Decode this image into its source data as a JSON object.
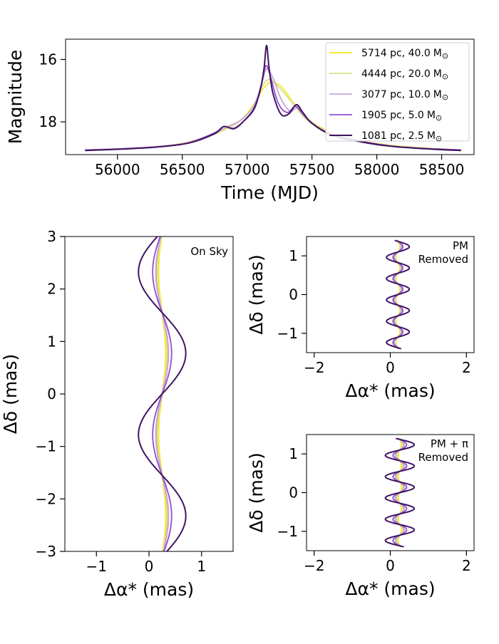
{
  "chart_data": [
    {
      "id": "lightcurve",
      "type": "line",
      "xlabel": "Time (MJD)",
      "ylabel": "Magnitude",
      "xlim": [
        55600,
        58750
      ],
      "ylim": [
        19.05,
        15.35
      ],
      "xticks": [
        56000,
        56500,
        57000,
        57500,
        58000,
        58500
      ],
      "yticks": [
        16,
        18
      ],
      "legend_position": "top-right",
      "series": [
        {
          "name": "5714 pc, 40.0",
          "unit": "M",
          "sub": "⊙",
          "color": "#f5ea3a",
          "width": 2.0,
          "x": [
            55750,
            56000,
            56300,
            56550,
            56800,
            56950,
            57050,
            57120,
            57180,
            57220,
            57280,
            57350,
            57450,
            57600,
            57800,
            58100,
            58400,
            58650
          ],
          "y": [
            18.9,
            18.87,
            18.8,
            18.65,
            18.3,
            17.95,
            17.45,
            16.95,
            16.72,
            16.75,
            16.95,
            17.35,
            17.85,
            18.25,
            18.55,
            18.75,
            18.85,
            18.9
          ]
        },
        {
          "name": "4444 pc, 20.0",
          "unit": "M",
          "sub": "⊙",
          "color": "#d9df8c",
          "width": 1.8,
          "x": [
            55750,
            56000,
            56300,
            56550,
            56800,
            56950,
            57050,
            57110,
            57160,
            57210,
            57280,
            57350,
            57450,
            57600,
            57800,
            58100,
            58400,
            58650
          ],
          "y": [
            18.9,
            18.87,
            18.8,
            18.66,
            18.3,
            17.95,
            17.5,
            16.9,
            16.65,
            16.75,
            17.05,
            17.4,
            17.9,
            18.28,
            18.56,
            18.76,
            18.86,
            18.9
          ]
        },
        {
          "name": "3077 pc, 10.0",
          "unit": "M",
          "sub": "⊙",
          "color": "#c7a6d8",
          "width": 1.8,
          "x": [
            55750,
            56000,
            56300,
            56550,
            56750,
            56850,
            56950,
            57050,
            57110,
            57150,
            57200,
            57260,
            57330,
            57390,
            57450,
            57600,
            57800,
            58100,
            58400,
            58650
          ],
          "y": [
            18.9,
            18.87,
            18.8,
            18.66,
            18.35,
            18.15,
            17.95,
            17.5,
            16.8,
            16.3,
            16.6,
            17.25,
            17.65,
            17.55,
            17.85,
            18.3,
            18.57,
            18.77,
            18.86,
            18.9
          ]
        },
        {
          "name": "1905 pc, 5.0",
          "unit": "M",
          "sub": "⊙",
          "color": "#8f4fd0",
          "width": 1.8,
          "x": [
            55750,
            56000,
            56300,
            56550,
            56750,
            56820,
            56900,
            56980,
            57060,
            57110,
            57145,
            57180,
            57240,
            57310,
            57370,
            57420,
            57500,
            57650,
            57850,
            58100,
            58400,
            58650
          ],
          "y": [
            18.9,
            18.87,
            18.8,
            18.67,
            18.35,
            18.15,
            18.2,
            17.95,
            17.55,
            16.8,
            16.2,
            16.55,
            17.4,
            17.7,
            17.5,
            17.7,
            18.05,
            18.4,
            18.6,
            18.77,
            18.86,
            18.9
          ]
        },
        {
          "name": "1081 pc, 2.5",
          "unit": "M",
          "sub": "⊙",
          "color": "#3f1560",
          "width": 2.0,
          "x": [
            55750,
            56000,
            56300,
            56550,
            56750,
            56820,
            56900,
            56980,
            57050,
            57100,
            57130,
            57150,
            57170,
            57200,
            57260,
            57320,
            57380,
            57430,
            57500,
            57650,
            57850,
            58100,
            58400,
            58650
          ],
          "y": [
            18.92,
            18.88,
            18.81,
            18.68,
            18.38,
            18.15,
            18.22,
            17.95,
            17.6,
            17.0,
            16.3,
            15.55,
            16.3,
            17.1,
            17.75,
            17.75,
            17.45,
            17.7,
            18.05,
            18.42,
            18.62,
            18.78,
            18.87,
            18.92
          ]
        }
      ]
    },
    {
      "id": "onsky",
      "type": "line",
      "title": "On Sky",
      "xlabel": "Δα* (mas)",
      "ylabel": "Δδ (mas)",
      "xlim": [
        -1.6,
        1.6
      ],
      "ylim": [
        -3,
        3
      ],
      "xticks": [
        -1,
        0,
        1
      ],
      "yticks": [
        -3,
        -2,
        -1,
        0,
        1,
        2,
        3
      ],
      "series": [
        {
          "name": "5714 pc, 40.0",
          "color": "#f5ea3a",
          "width": 2.5,
          "center": 0.25,
          "amplitude": 0.07,
          "period": 3.1,
          "phase": 0.0
        },
        {
          "name": "4444 pc, 20.0",
          "color": "#d9df8c",
          "width": 2.0,
          "center": 0.25,
          "amplitude": 0.1,
          "period": 3.1,
          "phase": 0.0
        },
        {
          "name": "3077 pc, 10.0",
          "color": "#c7a6d8",
          "width": 2.0,
          "center": 0.25,
          "amplitude": 0.12,
          "period": 3.1,
          "phase": 0.0
        },
        {
          "name": "1905 pc, 5.0",
          "color": "#8f4fd0",
          "width": 1.8,
          "center": 0.25,
          "amplitude": 0.18,
          "period": 3.1,
          "phase": 0.0
        },
        {
          "name": "1081 pc, 2.5",
          "color": "#3f1560",
          "width": 2.0,
          "center": 0.25,
          "amplitude": 0.45,
          "period": 3.1,
          "phase": 0.0
        }
      ]
    },
    {
      "id": "pm_removed",
      "type": "line",
      "title_lines": [
        "PM",
        "Removed"
      ],
      "xlabel": "Δα* (mas)",
      "ylabel": "Δδ (mas)",
      "xlim": [
        -2.2,
        2.2
      ],
      "ylim": [
        -1.5,
        1.5
      ],
      "xticks": [
        -2,
        0,
        2
      ],
      "yticks": [
        -1,
        0,
        1
      ],
      "y_range": [
        -1.4,
        1.4
      ],
      "series": [
        {
          "name": "5714 pc, 40.0",
          "color": "#f5ea3a",
          "width": 2.5,
          "center": 0.2,
          "amplitude": 0.06,
          "period": 0.55,
          "phase": 0.0
        },
        {
          "name": "4444 pc, 20.0",
          "color": "#d9df8c",
          "width": 2.0,
          "center": 0.2,
          "amplitude": 0.08,
          "period": 0.55,
          "phase": 0.0
        },
        {
          "name": "3077 pc, 10.0",
          "color": "#c7a6d8",
          "width": 2.0,
          "center": 0.2,
          "amplitude": 0.1,
          "period": 0.55,
          "phase": 0.0
        },
        {
          "name": "1905 pc, 5.0",
          "color": "#8f4fd0",
          "width": 1.8,
          "center": 0.2,
          "amplitude": 0.13,
          "period": 0.55,
          "phase": 0.0
        },
        {
          "name": "1081 pc, 2.5",
          "color": "#3f1560",
          "width": 2.0,
          "center": 0.2,
          "amplitude": 0.3,
          "period": 0.55,
          "phase": 0.0
        }
      ]
    },
    {
      "id": "pm_pi_removed",
      "type": "line",
      "title_lines": [
        "PM + π",
        "Removed"
      ],
      "xlabel": "Δα* (mas)",
      "ylabel": "Δδ (mas)",
      "xlim": [
        -2.2,
        2.2
      ],
      "ylim": [
        -1.5,
        1.5
      ],
      "xticks": [
        -2,
        0,
        2
      ],
      "yticks": [
        -1,
        0,
        1
      ],
      "y_range": [
        -1.4,
        1.4
      ],
      "series": [
        {
          "name": "5714 pc, 40.0",
          "color": "#f5ea3a",
          "width": 2.5,
          "center": 0.25,
          "amplitude": 0.05,
          "period": 0.55,
          "phase": 0.0
        },
        {
          "name": "4444 pc, 20.0",
          "color": "#d9df8c",
          "width": 2.0,
          "center": 0.25,
          "amplitude": 0.08,
          "period": 0.55,
          "phase": 0.0
        },
        {
          "name": "3077 pc, 10.0",
          "color": "#c7a6d8",
          "width": 2.0,
          "center": 0.25,
          "amplitude": 0.12,
          "period": 0.55,
          "phase": 0.0
        },
        {
          "name": "1905 pc, 5.0",
          "color": "#8f4fd0",
          "width": 1.8,
          "center": 0.25,
          "amplitude": 0.18,
          "period": 0.55,
          "phase": 0.0
        },
        {
          "name": "1081 pc, 2.5",
          "color": "#3f1560",
          "width": 2.0,
          "center": 0.25,
          "amplitude": 0.38,
          "period": 0.55,
          "phase": 0.0
        }
      ]
    }
  ]
}
